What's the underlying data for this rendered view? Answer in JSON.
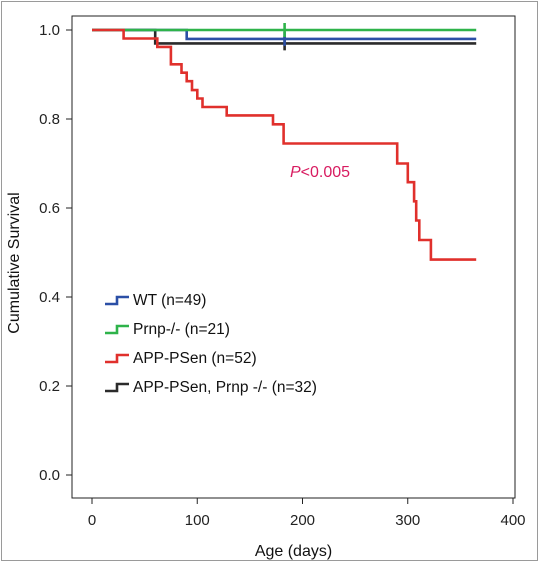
{
  "chart_data": {
    "type": "line",
    "xlabel": "Age (days)",
    "ylabel": "Cumulative Survival",
    "xlim": [
      0,
      400
    ],
    "ylim": [
      0.0,
      1.0
    ],
    "xticks": [
      "0",
      "100",
      "200",
      "300",
      "400"
    ],
    "yticks": [
      "0.0",
      "0.2",
      "0.4",
      "0.6",
      "0.8",
      "1.0"
    ],
    "grid": false,
    "legend_position": "lower-left",
    "annotation": {
      "italic": "P",
      "rest": "<0.005",
      "color": "#d81b60"
    },
    "series": [
      {
        "name": "WT (n=49)",
        "color": "#2b4fa6",
        "steps": [
          [
            0,
            1.0
          ],
          [
            90,
            1.0
          ],
          [
            90,
            0.98
          ],
          [
            365,
            0.98
          ]
        ],
        "censor": [
          183
        ]
      },
      {
        "name": "Prnp-/- (n=21)",
        "color": "#2eb34a",
        "steps": [
          [
            0,
            1.0
          ],
          [
            365,
            1.0
          ]
        ],
        "censor": [
          183
        ]
      },
      {
        "name": "APP-PSen (n=52)",
        "color": "#e0302c",
        "steps": [
          [
            0,
            1.0
          ],
          [
            30,
            1.0
          ],
          [
            30,
            0.981
          ],
          [
            62,
            0.981
          ],
          [
            62,
            0.962
          ],
          [
            75,
            0.962
          ],
          [
            75,
            0.923
          ],
          [
            85,
            0.923
          ],
          [
            85,
            0.904
          ],
          [
            90,
            0.904
          ],
          [
            90,
            0.885
          ],
          [
            95,
            0.885
          ],
          [
            95,
            0.865
          ],
          [
            100,
            0.865
          ],
          [
            100,
            0.846
          ],
          [
            105,
            0.846
          ],
          [
            105,
            0.827
          ],
          [
            128,
            0.827
          ],
          [
            128,
            0.808
          ],
          [
            172,
            0.808
          ],
          [
            172,
            0.788
          ],
          [
            182,
            0.788
          ],
          [
            182,
            0.745
          ],
          [
            290,
            0.745
          ],
          [
            290,
            0.7
          ],
          [
            300,
            0.7
          ],
          [
            300,
            0.658
          ],
          [
            306,
            0.658
          ],
          [
            306,
            0.615
          ],
          [
            308,
            0.615
          ],
          [
            308,
            0.572
          ],
          [
            311,
            0.572
          ],
          [
            311,
            0.528
          ],
          [
            322,
            0.528
          ],
          [
            322,
            0.484
          ],
          [
            365,
            0.484
          ]
        ]
      },
      {
        "name": "APP-PSen, Prnp -/- (n=32)",
        "color": "#2b2b2b",
        "steps": [
          [
            0,
            1.0
          ],
          [
            60,
            1.0
          ],
          [
            60,
            0.97
          ],
          [
            365,
            0.97
          ]
        ],
        "censor": [
          183
        ]
      }
    ]
  }
}
